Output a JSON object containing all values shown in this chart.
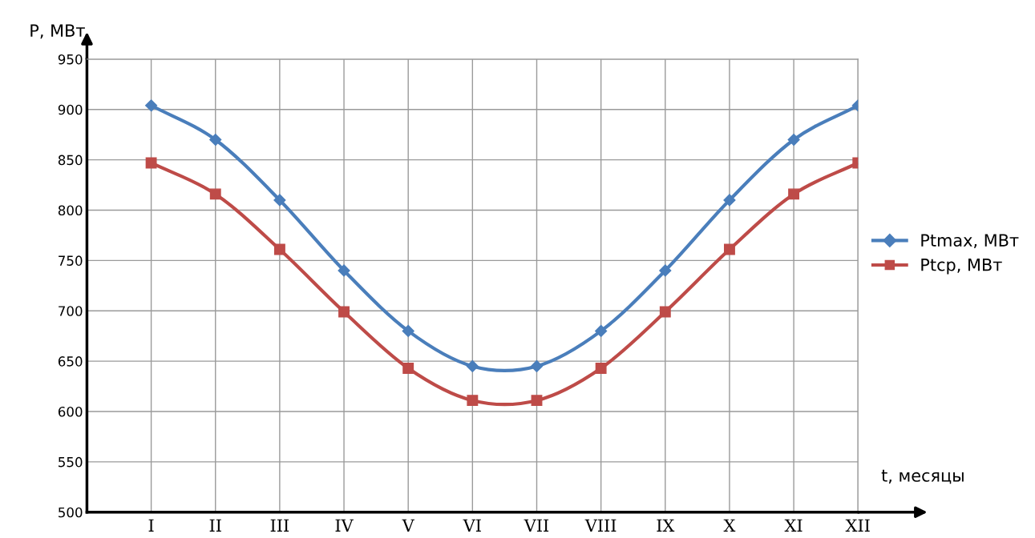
{
  "chart_data": {
    "type": "line",
    "ylabel": "P, МВт",
    "xlabel": "t, месяцы",
    "categories": [
      "I",
      "II",
      "III",
      "IV",
      "V",
      "VI",
      "VII",
      "VIII",
      "IX",
      "X",
      "XI",
      "XII"
    ],
    "series": [
      {
        "name": "Ptmax, МВт",
        "color": "#4a7ebb",
        "marker": "diamond",
        "values": [
          904,
          870,
          810,
          740,
          680,
          645,
          645,
          680,
          740,
          810,
          870,
          904
        ]
      },
      {
        "name": "Ptср, МВт",
        "color": "#be4b48",
        "marker": "square",
        "values": [
          847,
          816,
          761,
          699,
          643,
          611,
          611,
          643,
          699,
          761,
          816,
          847
        ]
      }
    ],
    "ylim": [
      500,
      950
    ],
    "yticks": [
      500,
      550,
      600,
      650,
      700,
      750,
      800,
      850,
      900,
      950
    ],
    "grid": true,
    "legend": "right",
    "line_style": "solid"
  }
}
